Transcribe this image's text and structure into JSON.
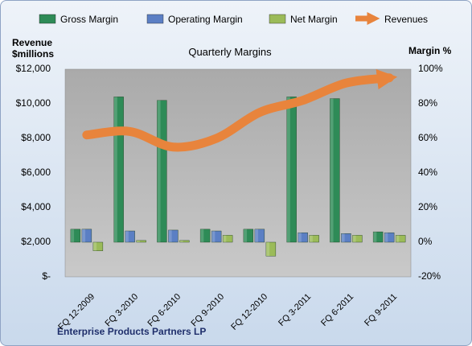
{
  "chart_data": {
    "type": "bar",
    "title": "Quarterly Margins",
    "subtitle": "Enterprise Products Partners LP",
    "ylabel_left": "Revenue $millions",
    "ylabel_right": "Margin %",
    "categories": [
      "FQ 12-2009",
      "FQ 3-2010",
      "FQ 6-2010",
      "FQ 9-2010",
      "FQ 12-2010",
      "FQ 3-2011",
      "FQ 6-2011",
      "FQ 9-2011"
    ],
    "ylim_right": [
      -20,
      100
    ],
    "ylim_left": [
      0,
      12000
    ],
    "yticks_left": [
      0,
      2000,
      4000,
      6000,
      8000,
      10000,
      12000
    ],
    "yticks_left_labels": [
      "$-",
      "$2,000",
      "$4,000",
      "$6,000",
      "$8,000",
      "$10,000",
      "$12,000"
    ],
    "yticks_right_labels": [
      "-20%",
      "0%",
      "20%",
      "40%",
      "60%",
      "80%",
      "100%"
    ],
    "yticks_right": [
      -20,
      0,
      20,
      40,
      60,
      80,
      100
    ],
    "series": [
      {
        "name": "Gross Margin",
        "axis": "right",
        "type": "bar",
        "color": "#2e8b57",
        "values": [
          7.5,
          84,
          82,
          7.5,
          7.5,
          84,
          83,
          6
        ]
      },
      {
        "name": "Operating Margin",
        "axis": "right",
        "type": "bar",
        "color": "#5b7fc4",
        "values": [
          7.5,
          6.5,
          7,
          6.5,
          7.5,
          5.5,
          5,
          5.5
        ]
      },
      {
        "name": "Net Margin",
        "axis": "right",
        "type": "bar",
        "color": "#9bbb59",
        "values": [
          -5,
          1,
          1,
          4,
          -8,
          4,
          4,
          4
        ]
      },
      {
        "name": "Revenues",
        "axis": "left",
        "type": "line",
        "color": "#e8843c",
        "values": [
          8200,
          8400,
          7500,
          8000,
          9500,
          10200,
          11200,
          11500
        ]
      }
    ],
    "grid": false,
    "legend_position": "top"
  }
}
